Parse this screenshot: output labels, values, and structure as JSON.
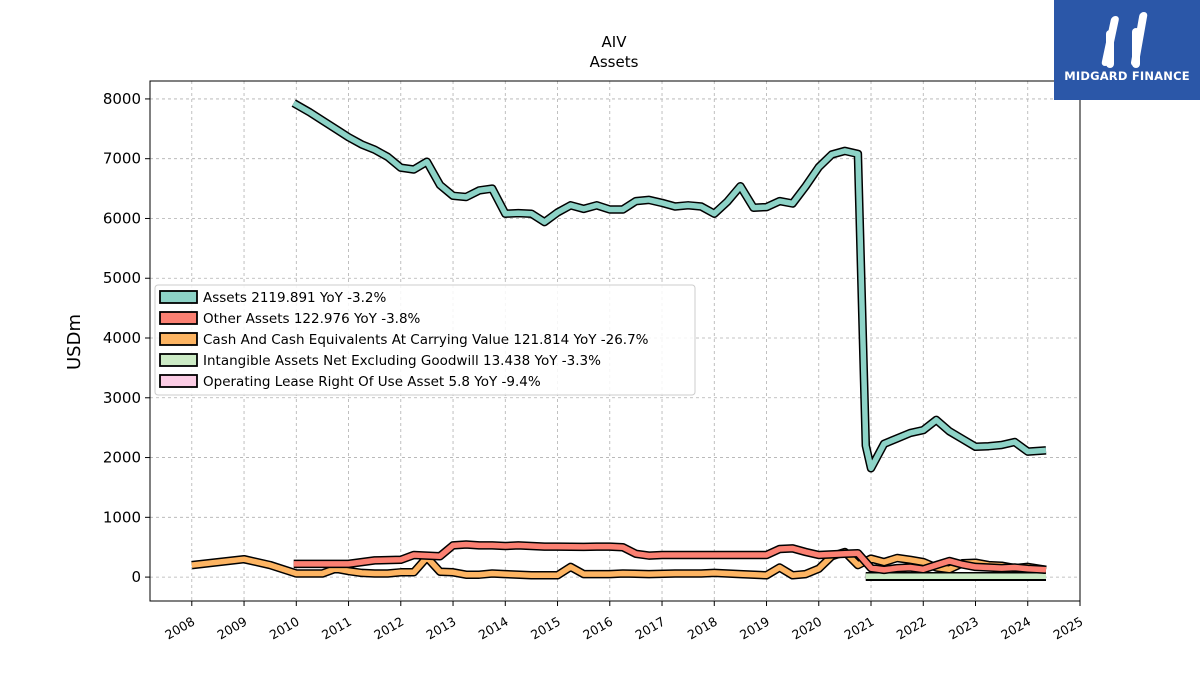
{
  "brand": {
    "logo_text": "MIDGARD FINANCE",
    "color": "#2b57a8"
  },
  "chart_data": {
    "type": "line",
    "title": "AIV",
    "subtitle": "Assets",
    "ylabel": "USDm",
    "xlabel": "",
    "xlim": [
      2007.2,
      2025.0
    ],
    "ylim": [
      -400,
      8300
    ],
    "yticks": [
      0,
      1000,
      2000,
      3000,
      4000,
      5000,
      6000,
      7000,
      8000
    ],
    "xticks": [
      2008,
      2009,
      2010,
      2011,
      2012,
      2013,
      2014,
      2015,
      2016,
      2017,
      2018,
      2019,
      2020,
      2021,
      2022,
      2023,
      2024,
      2025
    ],
    "grid": true,
    "legend_position": "center-left",
    "series": [
      {
        "name": "Assets  2119.891 YoY -3.2%",
        "color": "#8dd3c7",
        "points": [
          [
            2009.95,
            7930
          ],
          [
            2010.25,
            7780
          ],
          [
            2010.5,
            7640
          ],
          [
            2010.75,
            7500
          ],
          [
            2011.0,
            7360
          ],
          [
            2011.25,
            7240
          ],
          [
            2011.5,
            7150
          ],
          [
            2011.75,
            7030
          ],
          [
            2012.0,
            6850
          ],
          [
            2012.25,
            6820
          ],
          [
            2012.5,
            6950
          ],
          [
            2012.75,
            6560
          ],
          [
            2013.0,
            6380
          ],
          [
            2013.25,
            6360
          ],
          [
            2013.5,
            6470
          ],
          [
            2013.75,
            6500
          ],
          [
            2014.0,
            6080
          ],
          [
            2014.25,
            6090
          ],
          [
            2014.5,
            6080
          ],
          [
            2014.75,
            5940
          ],
          [
            2015.0,
            6100
          ],
          [
            2015.25,
            6220
          ],
          [
            2015.5,
            6160
          ],
          [
            2015.75,
            6220
          ],
          [
            2016.0,
            6150
          ],
          [
            2016.25,
            6150
          ],
          [
            2016.5,
            6290
          ],
          [
            2016.75,
            6310
          ],
          [
            2017.0,
            6260
          ],
          [
            2017.25,
            6200
          ],
          [
            2017.5,
            6220
          ],
          [
            2017.75,
            6200
          ],
          [
            2018.0,
            6080
          ],
          [
            2018.25,
            6280
          ],
          [
            2018.5,
            6540
          ],
          [
            2018.75,
            6180
          ],
          [
            2019.0,
            6190
          ],
          [
            2019.25,
            6290
          ],
          [
            2019.5,
            6250
          ],
          [
            2019.75,
            6540
          ],
          [
            2020.0,
            6860
          ],
          [
            2020.25,
            7070
          ],
          [
            2020.5,
            7130
          ],
          [
            2020.75,
            7080
          ],
          [
            2020.9,
            2200
          ],
          [
            2021.0,
            1820
          ],
          [
            2021.25,
            2230
          ],
          [
            2021.5,
            2320
          ],
          [
            2021.75,
            2410
          ],
          [
            2022.0,
            2460
          ],
          [
            2022.25,
            2630
          ],
          [
            2022.5,
            2440
          ],
          [
            2022.75,
            2310
          ],
          [
            2023.0,
            2180
          ],
          [
            2023.25,
            2190
          ],
          [
            2023.5,
            2210
          ],
          [
            2023.75,
            2260
          ],
          [
            2024.0,
            2100
          ],
          [
            2024.35,
            2119.891
          ]
        ]
      },
      {
        "name": "Other Assets  122.976 YoY -3.8%",
        "color": "#fb8072",
        "points": [
          [
            2009.95,
            220
          ],
          [
            2010.5,
            220
          ],
          [
            2011.0,
            220
          ],
          [
            2011.5,
            280
          ],
          [
            2012.0,
            290
          ],
          [
            2012.25,
            370
          ],
          [
            2012.75,
            350
          ],
          [
            2013.0,
            530
          ],
          [
            2013.25,
            545
          ],
          [
            2013.5,
            530
          ],
          [
            2013.75,
            530
          ],
          [
            2014.0,
            520
          ],
          [
            2014.25,
            530
          ],
          [
            2014.5,
            520
          ],
          [
            2014.75,
            510
          ],
          [
            2015.0,
            510
          ],
          [
            2015.5,
            505
          ],
          [
            2015.75,
            510
          ],
          [
            2016.0,
            510
          ],
          [
            2016.25,
            500
          ],
          [
            2016.5,
            390
          ],
          [
            2016.75,
            360
          ],
          [
            2017.0,
            370
          ],
          [
            2017.5,
            370
          ],
          [
            2018.0,
            370
          ],
          [
            2018.5,
            370
          ],
          [
            2019.0,
            370
          ],
          [
            2019.25,
            470
          ],
          [
            2019.5,
            480
          ],
          [
            2019.75,
            420
          ],
          [
            2020.0,
            370
          ],
          [
            2020.25,
            380
          ],
          [
            2020.5,
            390
          ],
          [
            2020.75,
            400
          ],
          [
            2021.0,
            150
          ],
          [
            2021.25,
            120
          ],
          [
            2021.5,
            150
          ],
          [
            2021.75,
            160
          ],
          [
            2022.0,
            130
          ],
          [
            2022.25,
            200
          ],
          [
            2022.5,
            270
          ],
          [
            2022.75,
            210
          ],
          [
            2023.0,
            170
          ],
          [
            2023.5,
            150
          ],
          [
            2023.75,
            160
          ],
          [
            2024.0,
            140
          ],
          [
            2024.35,
            122.976
          ]
        ]
      },
      {
        "name": "Cash And Cash Equivalents At Carrying Value  121.814 YoY -26.7%",
        "color": "#fdb462",
        "points": [
          [
            2008.0,
            200
          ],
          [
            2009.0,
            300
          ],
          [
            2009.5,
            200
          ],
          [
            2010.0,
            60
          ],
          [
            2010.5,
            60
          ],
          [
            2010.75,
            140
          ],
          [
            2011.0,
            100
          ],
          [
            2011.25,
            70
          ],
          [
            2011.5,
            60
          ],
          [
            2011.75,
            60
          ],
          [
            2012.0,
            80
          ],
          [
            2012.25,
            80
          ],
          [
            2012.5,
            330
          ],
          [
            2012.75,
            90
          ],
          [
            2013.0,
            80
          ],
          [
            2013.25,
            40
          ],
          [
            2013.5,
            40
          ],
          [
            2013.75,
            60
          ],
          [
            2014.0,
            50
          ],
          [
            2014.5,
            30
          ],
          [
            2015.0,
            30
          ],
          [
            2015.25,
            170
          ],
          [
            2015.5,
            50
          ],
          [
            2016.0,
            50
          ],
          [
            2016.25,
            60
          ],
          [
            2016.75,
            50
          ],
          [
            2017.25,
            60
          ],
          [
            2017.75,
            60
          ],
          [
            2018.0,
            70
          ],
          [
            2018.5,
            50
          ],
          [
            2019.0,
            30
          ],
          [
            2019.25,
            160
          ],
          [
            2019.5,
            30
          ],
          [
            2019.75,
            50
          ],
          [
            2020.0,
            140
          ],
          [
            2020.25,
            350
          ],
          [
            2020.5,
            420
          ],
          [
            2020.75,
            200
          ],
          [
            2021.0,
            310
          ],
          [
            2021.25,
            250
          ],
          [
            2021.5,
            320
          ],
          [
            2021.75,
            290
          ],
          [
            2022.0,
            250
          ],
          [
            2022.25,
            160
          ],
          [
            2022.5,
            130
          ],
          [
            2022.75,
            230
          ],
          [
            2023.0,
            240
          ],
          [
            2023.25,
            200
          ],
          [
            2023.5,
            190
          ],
          [
            2023.75,
            150
          ],
          [
            2024.0,
            170
          ],
          [
            2024.35,
            121.814
          ]
        ]
      },
      {
        "name": "Intangible Assets Net Excluding Goodwill  13.438 YoY -3.3%",
        "color": "#ccebc5",
        "points": [
          [
            2020.9,
            15
          ],
          [
            2022.0,
            15
          ],
          [
            2023.0,
            14
          ],
          [
            2024.35,
            13.438
          ]
        ]
      },
      {
        "name": "Operating Lease Right Of Use Asset  5.8 YoY -9.4%",
        "color": "#fccde5",
        "points": [
          [
            2020.9,
            6
          ],
          [
            2022.0,
            6
          ],
          [
            2023.0,
            6
          ],
          [
            2024.35,
            5.8
          ]
        ]
      }
    ]
  }
}
